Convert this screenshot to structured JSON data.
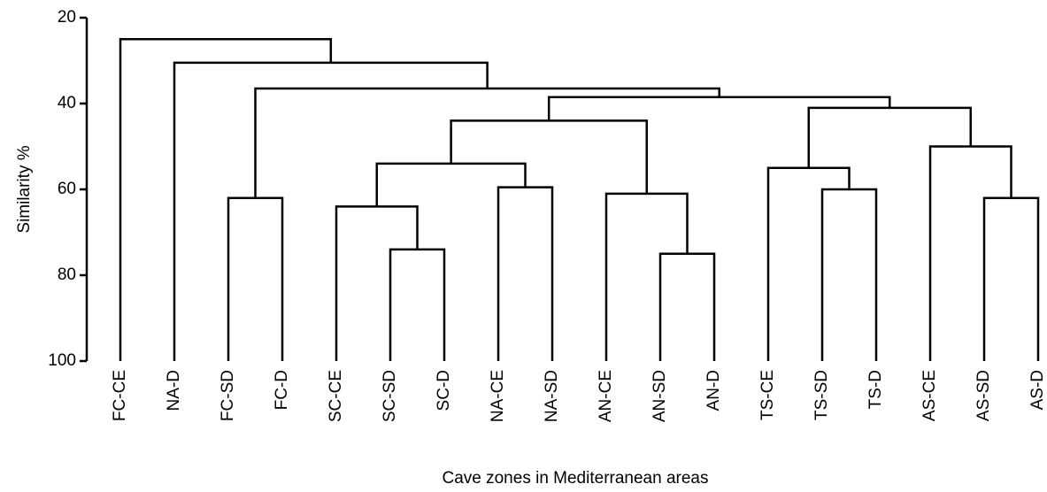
{
  "chart_data": {
    "type": "dendrogram",
    "x_label": "Cave zones in Mediterranean areas",
    "y_label": "Similarity %",
    "leaves": [
      "FC-CE",
      "NA-D",
      "FC-SD",
      "FC-D",
      "SC-CE",
      "SC-SD",
      "SC-D",
      "NA-CE",
      "NA-SD",
      "AN-CE",
      "AN-SD",
      "AN-D",
      "TS-CE",
      "TS-SD",
      "TS-D",
      "AS-CE",
      "AS-SD",
      "AS-D"
    ],
    "merges": [
      {
        "children": [
          5,
          6
        ],
        "height": 74
      },
      {
        "children": [
          4,
          18
        ],
        "height": 64
      },
      {
        "children": [
          7,
          8
        ],
        "height": 59.5
      },
      {
        "children": [
          10,
          11
        ],
        "height": 75
      },
      {
        "children": [
          9,
          21
        ],
        "height": 61
      },
      {
        "children": [
          19,
          20
        ],
        "height": 54
      },
      {
        "children": [
          23,
          22
        ],
        "height": 44
      },
      {
        "children": [
          13,
          14
        ],
        "height": 60
      },
      {
        "children": [
          12,
          25
        ],
        "height": 55
      },
      {
        "children": [
          16,
          17
        ],
        "height": 62
      },
      {
        "children": [
          15,
          27
        ],
        "height": 50
      },
      {
        "children": [
          26,
          28
        ],
        "height": 41
      },
      {
        "children": [
          24,
          29
        ],
        "height": 38.5
      },
      {
        "children": [
          2,
          3
        ],
        "height": 62
      },
      {
        "children": [
          31,
          30
        ],
        "height": 36.5
      },
      {
        "children": [
          1,
          32
        ],
        "height": 30.5
      },
      {
        "children": [
          0,
          33
        ],
        "height": 25
      }
    ],
    "ylim": [
      20,
      100
    ],
    "yticks": [
      20,
      40,
      60,
      80,
      100
    ],
    "y_inverted": true,
    "color": "#000000"
  }
}
